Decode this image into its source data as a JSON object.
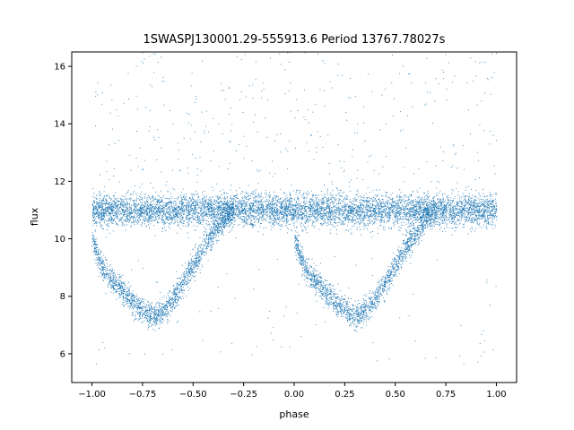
{
  "chart_data": {
    "type": "scatter",
    "title": "1SWASPJ130001.29-555913.6 Period 13767.78027s",
    "xlabel": "phase",
    "ylabel": "flux",
    "xlim": [
      -1.1,
      1.1
    ],
    "ylim": [
      5.0,
      16.5
    ],
    "xticks": [
      -1.0,
      -0.75,
      -0.5,
      -0.25,
      0.0,
      0.25,
      0.5,
      0.75,
      1.0
    ],
    "xtick_labels": [
      "−1.00",
      "−0.75",
      "−0.50",
      "−0.25",
      "0.00",
      "0.25",
      "0.50",
      "0.75",
      "1.00"
    ],
    "yticks": [
      6,
      8,
      10,
      12,
      14,
      16
    ],
    "ytick_labels": [
      "6",
      "8",
      "10",
      "12",
      "14",
      "16"
    ],
    "grid": false,
    "point_color": "#1f77b4",
    "series": [
      {
        "description": "phase-folded light curve, points repeated for phase -1 to 1",
        "baseline_flux": 11.0,
        "eclipse_branch_points": [
          [
            -1.0,
            10.0
          ],
          [
            -0.95,
            9.0
          ],
          [
            -0.9,
            8.6
          ],
          [
            -0.85,
            8.2
          ],
          [
            -0.8,
            7.8
          ],
          [
            -0.75,
            7.5
          ],
          [
            -0.7,
            7.3
          ],
          [
            -0.65,
            7.5
          ],
          [
            -0.6,
            7.9
          ],
          [
            -0.55,
            8.5
          ],
          [
            -0.5,
            9.1
          ],
          [
            -0.45,
            9.7
          ],
          [
            -0.4,
            10.2
          ],
          [
            -0.35,
            10.7
          ],
          [
            -0.3,
            11.0
          ],
          [
            0.0,
            10.0
          ],
          [
            0.05,
            9.0
          ],
          [
            0.1,
            8.6
          ],
          [
            0.15,
            8.2
          ],
          [
            0.2,
            7.8
          ],
          [
            0.25,
            7.5
          ],
          [
            0.3,
            7.3
          ],
          [
            0.35,
            7.5
          ],
          [
            0.4,
            7.9
          ],
          [
            0.45,
            8.5
          ],
          [
            0.5,
            9.1
          ],
          [
            0.55,
            9.7
          ],
          [
            0.6,
            10.2
          ],
          [
            0.65,
            10.7
          ],
          [
            0.7,
            11.0
          ]
        ]
      }
    ]
  }
}
